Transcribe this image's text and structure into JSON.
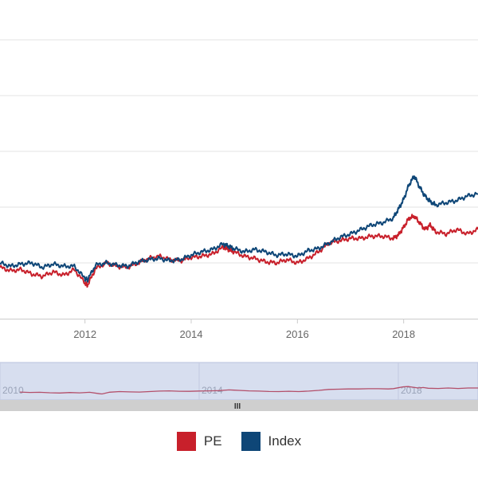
{
  "colors": {
    "pe": "#c8202b",
    "index": "#0e4677",
    "grid": "#e3e3e3",
    "axis_text": "#666666",
    "navigator_bg": "#d7deef",
    "navigator_line": "#b34f6a",
    "scrollbar_bg": "#cfcfcf",
    "scrollbar_grip": "#333333"
  },
  "legend": {
    "items": [
      {
        "label": "PE",
        "color_key": "pe"
      },
      {
        "label": "Index",
        "color_key": "index"
      }
    ]
  },
  "navigator": {
    "tick_labels": [
      "2010",
      "2014",
      "2018"
    ],
    "scrollbar_grip": "III"
  },
  "chart_data": {
    "type": "line",
    "title": "",
    "xlabel": "",
    "ylabel": "",
    "x_ticks": [
      "2012",
      "2014",
      "2016",
      "2018"
    ],
    "grid": true,
    "legend_position": "bottom",
    "x": [
      2010.4,
      2010.6,
      2010.8,
      2011.0,
      2011.2,
      2011.4,
      2011.6,
      2011.8,
      2012.0,
      2012.05,
      2012.2,
      2012.4,
      2012.6,
      2012.8,
      2013.0,
      2013.2,
      2013.4,
      2013.6,
      2013.8,
      2014.0,
      2014.2,
      2014.4,
      2014.6,
      2014.7,
      2014.8,
      2015.0,
      2015.2,
      2015.4,
      2015.6,
      2015.8,
      2016.0,
      2016.2,
      2016.4,
      2016.6,
      2016.8,
      2017.0,
      2017.2,
      2017.4,
      2017.6,
      2017.8,
      2017.9,
      2018.0,
      2018.1,
      2018.2,
      2018.3,
      2018.4,
      2018.5,
      2018.6,
      2018.8,
      2019.0,
      2019.2,
      2019.4
    ],
    "series": [
      {
        "name": "PE",
        "values": [
          0.96,
          0.93,
          0.94,
          0.9,
          0.88,
          0.92,
          0.89,
          0.94,
          0.82,
          0.8,
          0.95,
          1.0,
          0.97,
          0.96,
          1.0,
          1.04,
          1.06,
          1.03,
          1.02,
          1.05,
          1.06,
          1.08,
          1.14,
          1.12,
          1.1,
          1.06,
          1.04,
          1.01,
          1.0,
          1.03,
          1.0,
          1.04,
          1.1,
          1.18,
          1.2,
          1.22,
          1.22,
          1.24,
          1.24,
          1.22,
          1.25,
          1.32,
          1.4,
          1.42,
          1.36,
          1.3,
          1.34,
          1.28,
          1.26,
          1.3,
          1.26,
          1.3
        ]
      },
      {
        "name": "Index",
        "values": [
          1.0,
          0.97,
          0.99,
          1.0,
          0.96,
          0.99,
          0.97,
          0.97,
          0.86,
          0.85,
          0.98,
          1.0,
          0.98,
          0.97,
          1.01,
          1.03,
          1.04,
          1.02,
          1.03,
          1.07,
          1.1,
          1.12,
          1.17,
          1.15,
          1.13,
          1.1,
          1.12,
          1.1,
          1.07,
          1.08,
          1.06,
          1.11,
          1.13,
          1.18,
          1.23,
          1.26,
          1.3,
          1.34,
          1.36,
          1.4,
          1.48,
          1.57,
          1.7,
          1.78,
          1.68,
          1.6,
          1.55,
          1.52,
          1.54,
          1.56,
          1.6,
          1.62
        ]
      }
    ]
  }
}
